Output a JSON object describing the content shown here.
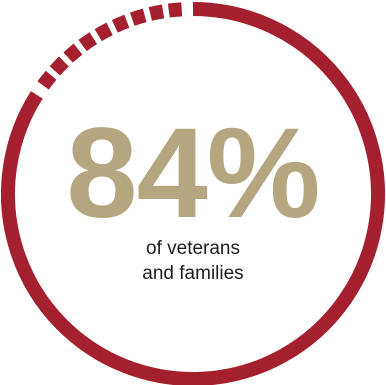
{
  "stat": {
    "value": "84%",
    "caption_line1": "of veterans",
    "caption_line2": "and families",
    "fraction": 0.84
  },
  "colors": {
    "ring": "#a5202f",
    "value_text": "#b4a67f",
    "caption_text": "#1e1e1e",
    "background": "#ffffff"
  },
  "icon": "progress-ring"
}
